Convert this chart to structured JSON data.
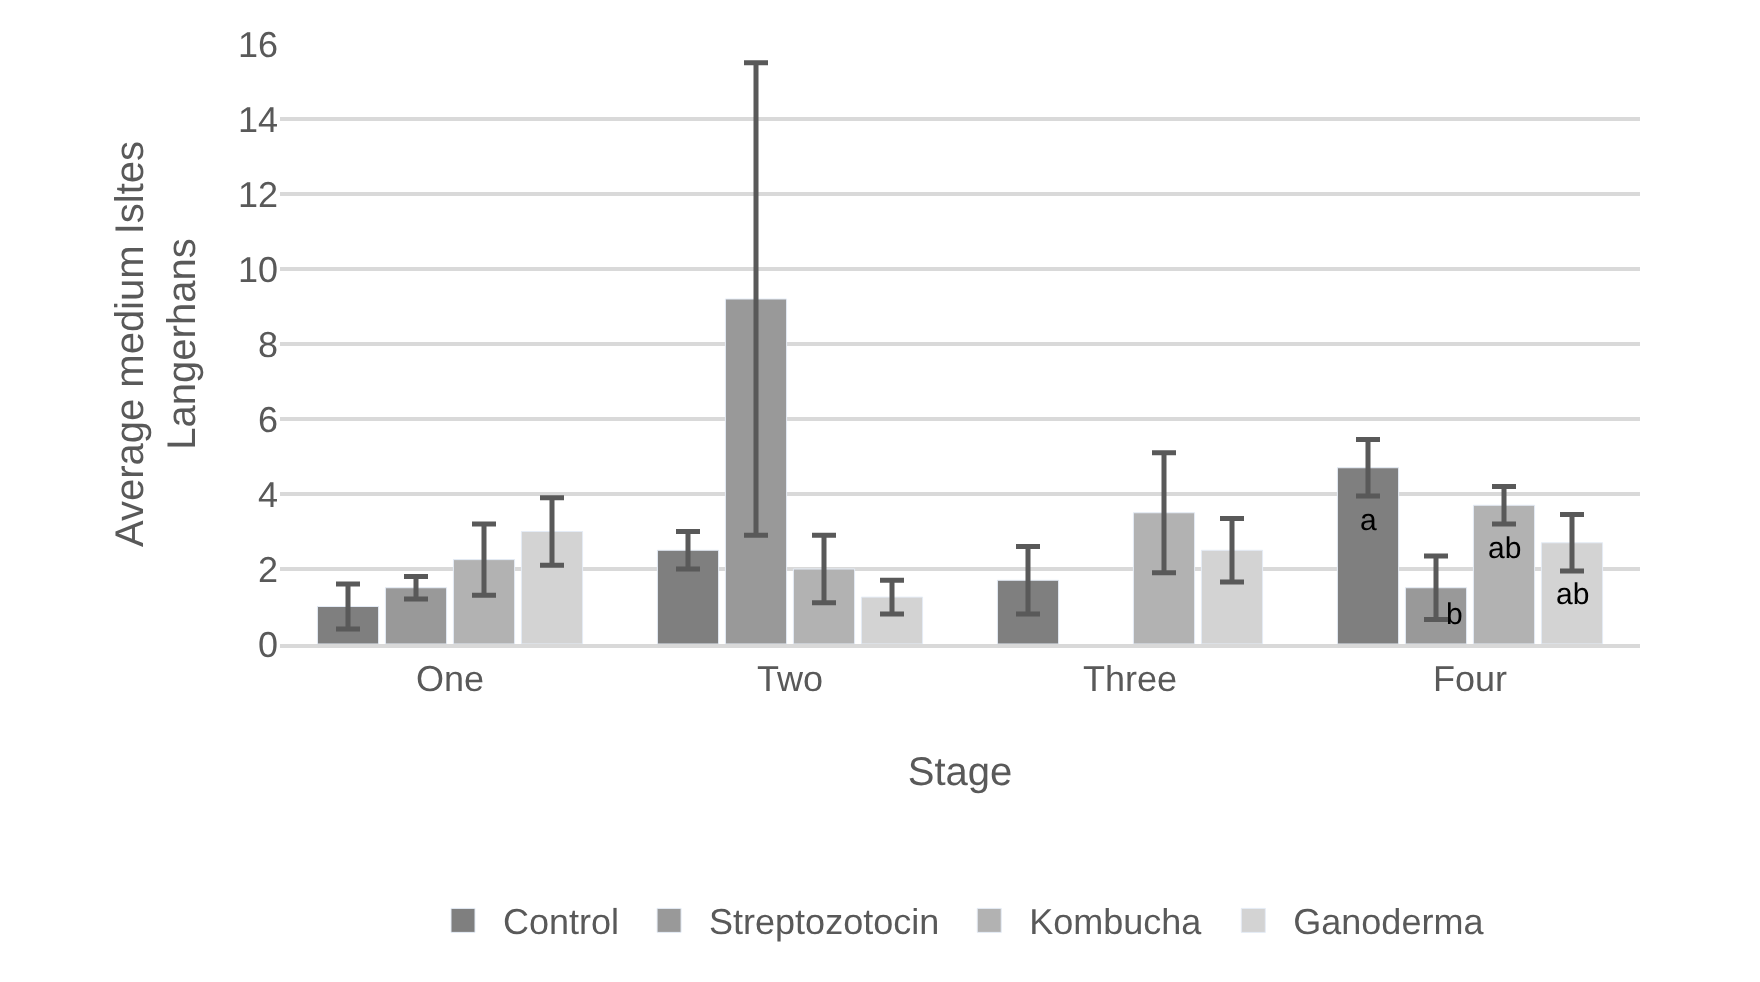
{
  "chart_data": {
    "type": "bar",
    "xlabel": "Stage",
    "ylabel": "Average medium Isltes\nLangerhans",
    "categories": [
      "One",
      "Two",
      "Three",
      "Four"
    ],
    "series": [
      {
        "name": "Control",
        "color": "#7f7f7f",
        "values": [
          1.0,
          2.5,
          1.7,
          4.7
        ],
        "errors": [
          0.6,
          0.5,
          0.9,
          0.75
        ],
        "value_labels": [
          null,
          null,
          null,
          "a"
        ]
      },
      {
        "name": "Streptozotocin",
        "color": "#999999",
        "values": [
          1.5,
          9.2,
          null,
          1.5
        ],
        "errors": [
          0.3,
          6.3,
          null,
          0.85
        ],
        "value_labels": [
          null,
          null,
          null,
          "b"
        ]
      },
      {
        "name": "Kombucha",
        "color": "#b2b2b2",
        "values": [
          2.25,
          2.0,
          3.5,
          3.7
        ],
        "errors": [
          0.95,
          0.9,
          1.6,
          0.5
        ],
        "value_labels": [
          null,
          null,
          null,
          "ab"
        ]
      },
      {
        "name": "Ganoderma",
        "color": "#d3d3d3",
        "values": [
          3.0,
          1.25,
          2.5,
          2.7
        ],
        "errors": [
          0.9,
          0.45,
          0.85,
          0.75
        ],
        "value_labels": [
          null,
          null,
          null,
          "ab"
        ]
      }
    ],
    "ylim": [
      0,
      16
    ],
    "yticks": [
      0,
      2,
      4,
      6,
      8,
      10,
      12,
      14,
      16
    ],
    "grid": "y",
    "legend": "bottom"
  }
}
